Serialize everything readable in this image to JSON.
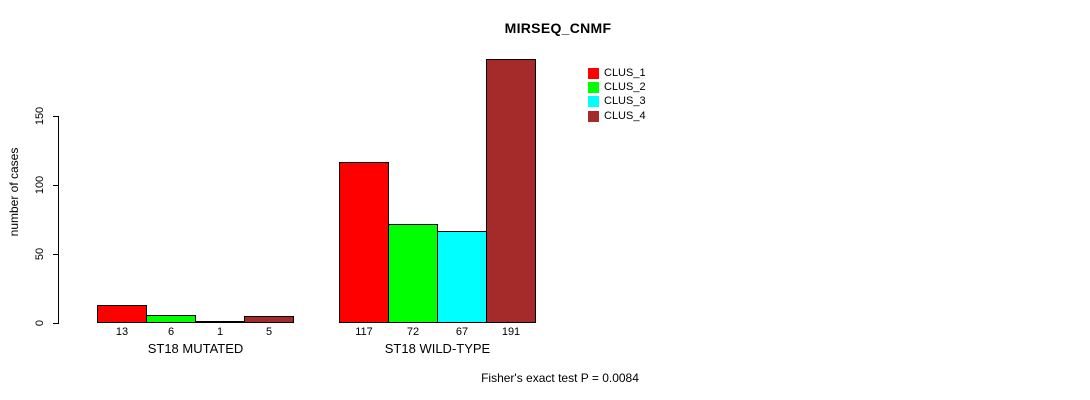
{
  "title": "MIRSEQ_CNMF",
  "footer": "Fisher's exact test P = 0.0084",
  "y_axis": {
    "label": "number of cases",
    "ticks": [
      0,
      50,
      100,
      150
    ]
  },
  "legend": [
    {
      "label": "CLUS_1",
      "color": "#FF0000"
    },
    {
      "label": "CLUS_2",
      "color": "#00FF00"
    },
    {
      "label": "CLUS_3",
      "color": "#00FFFF"
    },
    {
      "label": "CLUS_4",
      "color": "#A52A2A"
    }
  ],
  "chart_data": {
    "type": "bar",
    "title": "MIRSEQ_CNMF",
    "xlabel": "",
    "ylabel": "number of cases",
    "ylim": [
      0,
      150
    ],
    "grid": false,
    "legend_position": "top-right-inside",
    "categories": [
      "ST18 MUTATED",
      "ST18 WILD-TYPE"
    ],
    "series": [
      {
        "name": "CLUS_1",
        "color": "#FF0000",
        "values": [
          13,
          117
        ]
      },
      {
        "name": "CLUS_2",
        "color": "#00FF00",
        "values": [
          6,
          72
        ]
      },
      {
        "name": "CLUS_3",
        "color": "#00FFFF",
        "values": [
          1,
          67
        ]
      },
      {
        "name": "CLUS_4",
        "color": "#A52A2A",
        "values": [
          5,
          191
        ]
      }
    ],
    "bar_value_labels": [
      [
        13,
        6,
        1,
        5
      ],
      [
        117,
        72,
        67,
        191
      ]
    ],
    "annotation": "Fisher's exact test P = 0.0084"
  }
}
